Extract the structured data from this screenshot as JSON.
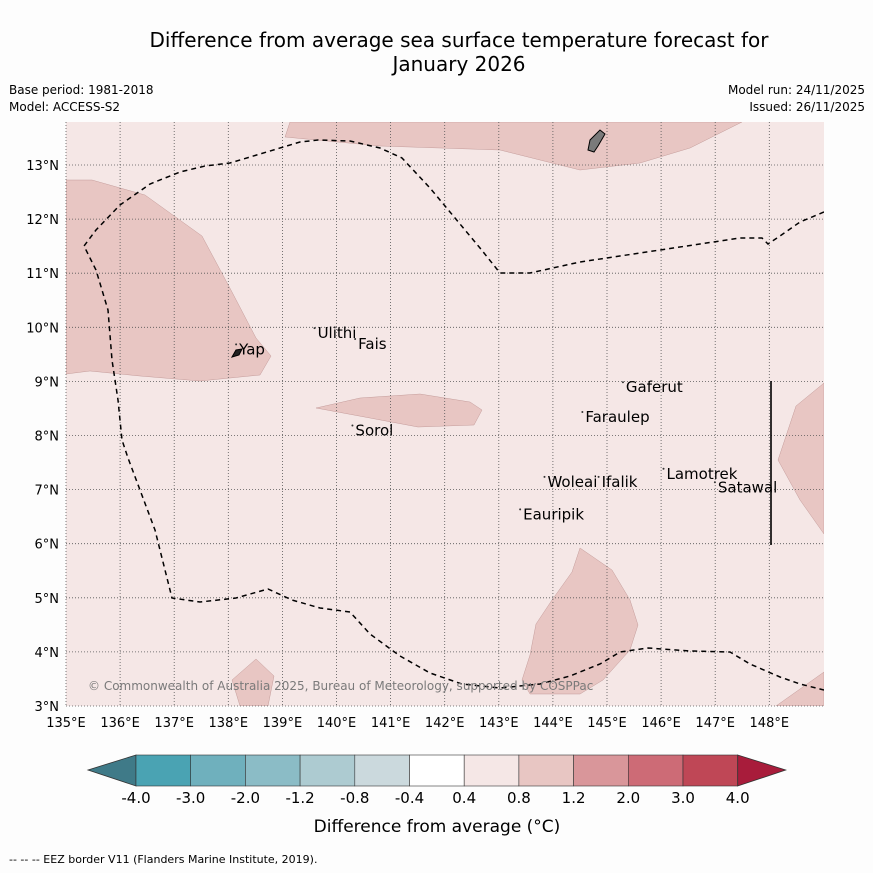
{
  "title_line1": "Difference from average sea surface temperature forecast for",
  "title_line2": "January 2026",
  "meta": {
    "base_period": "Base period: 1981-2018",
    "model": "Model: ACCESS-S2",
    "model_run": "Model run: 24/11/2025",
    "issued": "Issued: 26/11/2025"
  },
  "map": {
    "lon_labels": [
      "135°E",
      "136°E",
      "137°E",
      "138°E",
      "139°E",
      "140°E",
      "141°E",
      "142°E",
      "143°E",
      "144°E",
      "145°E",
      "146°E",
      "147°E",
      "148°E"
    ],
    "lat_labels": [
      "3°N",
      "4°N",
      "5°N",
      "6°N",
      "7°N",
      "8°N",
      "9°N",
      "10°N",
      "11°N",
      "12°N",
      "13°N"
    ],
    "places": [
      {
        "name": "Yap",
        "lon": 138.2,
        "lat": 9.5
      },
      {
        "name": "Ulithi",
        "lon": 139.65,
        "lat": 9.8
      },
      {
        "name": "Fais",
        "lon": 140.4,
        "lat": 9.6
      },
      {
        "name": "Sorol",
        "lon": 140.35,
        "lat": 8.0
      },
      {
        "name": "Gaferut",
        "lon": 145.35,
        "lat": 8.8
      },
      {
        "name": "Faraulep",
        "lon": 144.6,
        "lat": 8.25
      },
      {
        "name": "Woleai",
        "lon": 143.9,
        "lat": 7.05
      },
      {
        "name": "Ifalik",
        "lon": 144.9,
        "lat": 7.05
      },
      {
        "name": "Lamotrek",
        "lon": 146.1,
        "lat": 7.2
      },
      {
        "name": "Satawal",
        "lon": 147.05,
        "lat": 6.95
      },
      {
        "name": "Eauripik",
        "lon": 143.45,
        "lat": 6.45
      }
    ],
    "copyright": "© Commonwealth of Australia 2025, Bureau of Meteorology, supported by COSPPac"
  },
  "colorbar": {
    "colors": [
      "#3f7a88",
      "#4aa3b3",
      "#6fb0bd",
      "#8bbcc6",
      "#adcbd1",
      "#cbd9dd",
      "#ffffff",
      "#f5e7e6",
      "#e8c6c3",
      "#d9969a",
      "#cd6b76",
      "#bf4756",
      "#a81c3b"
    ],
    "labels": [
      "-4.0",
      "-3.0",
      "-2.0",
      "-1.2",
      "-0.8",
      "-0.4",
      "0.4",
      "0.8",
      "1.2",
      "2.0",
      "3.0",
      "4.0"
    ],
    "title": "Difference from average (°C)"
  },
  "footer": "--  --  -- EEZ border V11 (Flanders Marine Institute, 2019)."
}
